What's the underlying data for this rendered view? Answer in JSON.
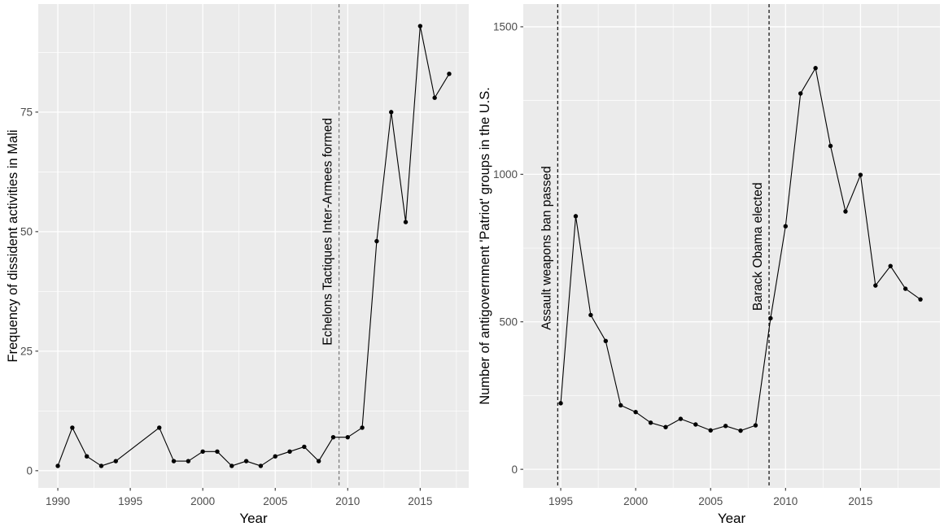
{
  "figure": {
    "background": "#FFFFFF",
    "panel_background": "#EBEBEB",
    "grid_color": "#FFFFFF",
    "tick_label_color": "#4D4D4D",
    "axis_title_color": "#000000",
    "tick_mark_color": "#333333"
  },
  "chart_data": [
    {
      "id": "mali-dissident-activities",
      "type": "line",
      "title": "",
      "xlabel": "Year",
      "ylabel": "Frequency of dissident activities in Mali",
      "x": [
        1990,
        1991,
        1992,
        1993,
        1994,
        1997,
        1998,
        1999,
        2000,
        2001,
        2002,
        2003,
        2004,
        2005,
        2006,
        2007,
        2008,
        2009,
        2010,
        2011,
        2012,
        2013,
        2014,
        2015,
        2016,
        2017
      ],
      "y": [
        1,
        9,
        3,
        1,
        2,
        9,
        2,
        2,
        4,
        4,
        1,
        2,
        1,
        3,
        4,
        5,
        2,
        7,
        7,
        9,
        48,
        75,
        52,
        93,
        78,
        83
      ],
      "xlim": [
        1988.65,
        2018.35
      ],
      "ylim": [
        -3.6,
        97.6
      ],
      "x_ticks": [
        1990,
        1995,
        2000,
        2005,
        2010,
        2015
      ],
      "y_ticks": [
        0,
        25,
        50,
        75
      ],
      "x_minor_ticks": [
        1992.5,
        1997.5,
        2002.5,
        2007.5,
        2012.5,
        2017.5
      ],
      "y_minor_ticks": [
        12.5,
        37.5,
        62.5,
        87.5
      ],
      "grid": "major-and-minor",
      "legend": "none",
      "line_color": "#000000",
      "point_color": "#000000",
      "annotations": [
        {
          "label": "Echelons Tactiques Inter-Armees formed",
          "vline_x": 2009.4,
          "vline_style": "dashed",
          "vline_color": "#7F7F7F",
          "text_y": 50,
          "text_color": "#000000"
        }
      ]
    },
    {
      "id": "us-patriot-groups",
      "type": "line",
      "title": "",
      "xlabel": "Year",
      "ylabel": "Number of antigovernment 'Patriot' groups in the U.S.",
      "x": [
        1995,
        1996,
        1997,
        1998,
        1999,
        2000,
        2001,
        2002,
        2003,
        2004,
        2005,
        2006,
        2007,
        2008,
        2009,
        2010,
        2011,
        2012,
        2013,
        2014,
        2015,
        2016,
        2017,
        2018,
        2019
      ],
      "y": [
        224,
        858,
        523,
        435,
        217,
        194,
        158,
        143,
        171,
        152,
        132,
        147,
        131,
        149,
        512,
        824,
        1274,
        1360,
        1096,
        874,
        998,
        623,
        689,
        612,
        576
      ],
      "xlim": [
        1992.5,
        2020.3
      ],
      "ylim": [
        -63,
        1577
      ],
      "x_ticks": [
        1995,
        2000,
        2005,
        2010,
        2015
      ],
      "y_ticks": [
        0,
        500,
        1000,
        1500
      ],
      "x_minor_ticks": [
        1997.5,
        2002.5,
        2007.5,
        2012.5,
        2017.5
      ],
      "y_minor_ticks": [
        250,
        750,
        1250
      ],
      "grid": "major-and-minor",
      "legend": "none",
      "line_color": "#000000",
      "point_color": "#000000",
      "annotations": [
        {
          "label": "Assault weapons ban passed",
          "vline_x": 1994.8,
          "vline_style": "dashed",
          "vline_color": "#1A1A1A",
          "text_y": 750,
          "text_color": "#000000"
        },
        {
          "label": "Barack Obama elected",
          "vline_x": 2008.9,
          "vline_style": "dashed",
          "vline_color": "#1A1A1A",
          "text_y": 755,
          "text_color": "#000000"
        }
      ]
    }
  ]
}
